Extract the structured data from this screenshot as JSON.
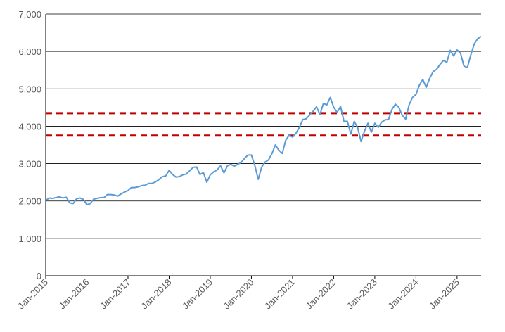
{
  "chart_data": {
    "type": "line",
    "title": "",
    "xlabel": "",
    "ylabel": "",
    "ylim": [
      0,
      7000
    ],
    "yticks": [
      0,
      1000,
      2000,
      3000,
      4000,
      5000,
      6000,
      7000
    ],
    "ytick_labels": [
      "0",
      "1,000",
      "2,000",
      "3,000",
      "4,000",
      "5,000",
      "6,000",
      "7,000"
    ],
    "xlim": [
      "2015-01",
      "2025-08"
    ],
    "xtick_labels": [
      "Jan-2015",
      "Jan-2016",
      "Jan-2017",
      "Jan-2018",
      "Jan-2019",
      "Jan-2020",
      "Jan-2021",
      "Jan-2022",
      "Jan-2023",
      "Jan-2024",
      "Jan-2025"
    ],
    "xtick_values": [
      "2015-01",
      "2016-01",
      "2017-01",
      "2018-01",
      "2019-01",
      "2020-01",
      "2021-01",
      "2022-01",
      "2023-01",
      "2024-01",
      "2025-01"
    ],
    "grid": "horizontal",
    "legend": "none",
    "series": [
      {
        "color": "#5b9bd5",
        "x": [
          "2015-01",
          "2015-02",
          "2015-03",
          "2015-04",
          "2015-05",
          "2015-06",
          "2015-07",
          "2015-08",
          "2015-09",
          "2015-10",
          "2015-11",
          "2015-12",
          "2016-01",
          "2016-02",
          "2016-03",
          "2016-04",
          "2016-05",
          "2016-06",
          "2016-07",
          "2016-08",
          "2016-09",
          "2016-10",
          "2016-11",
          "2016-12",
          "2017-01",
          "2017-02",
          "2017-03",
          "2017-04",
          "2017-05",
          "2017-06",
          "2017-07",
          "2017-08",
          "2017-09",
          "2017-10",
          "2017-11",
          "2017-12",
          "2018-01",
          "2018-02",
          "2018-03",
          "2018-04",
          "2018-05",
          "2018-06",
          "2018-07",
          "2018-08",
          "2018-09",
          "2018-10",
          "2018-11",
          "2018-12",
          "2019-01",
          "2019-02",
          "2019-03",
          "2019-04",
          "2019-05",
          "2019-06",
          "2019-07",
          "2019-08",
          "2019-09",
          "2019-10",
          "2019-11",
          "2019-12",
          "2020-01",
          "2020-02",
          "2020-03",
          "2020-04",
          "2020-05",
          "2020-06",
          "2020-07",
          "2020-08",
          "2020-09",
          "2020-10",
          "2020-11",
          "2020-12",
          "2021-01",
          "2021-02",
          "2021-03",
          "2021-04",
          "2021-05",
          "2021-06",
          "2021-07",
          "2021-08",
          "2021-09",
          "2021-10",
          "2021-11",
          "2021-12",
          "2022-01",
          "2022-02",
          "2022-03",
          "2022-04",
          "2022-05",
          "2022-06",
          "2022-07",
          "2022-08",
          "2022-09",
          "2022-10",
          "2022-11",
          "2022-12",
          "2023-01",
          "2023-02",
          "2023-03",
          "2023-04",
          "2023-05",
          "2023-06",
          "2023-07",
          "2023-08",
          "2023-09",
          "2023-10",
          "2023-11",
          "2023-12",
          "2024-01",
          "2024-02",
          "2024-03",
          "2024-04",
          "2024-05",
          "2024-06",
          "2024-07",
          "2024-08",
          "2024-09",
          "2024-10",
          "2024-11",
          "2024-12",
          "2025-01",
          "2025-02",
          "2025-03",
          "2025-04",
          "2025-05",
          "2025-06",
          "2025-07",
          "2025-08"
        ],
        "values": [
          2010,
          2080,
          2070,
          2090,
          2110,
          2080,
          2100,
          1950,
          1930,
          2060,
          2080,
          2040,
          1900,
          1930,
          2050,
          2070,
          2090,
          2090,
          2170,
          2170,
          2160,
          2130,
          2190,
          2240,
          2280,
          2360,
          2360,
          2380,
          2410,
          2420,
          2470,
          2470,
          2510,
          2570,
          2650,
          2670,
          2820,
          2710,
          2640,
          2650,
          2700,
          2720,
          2810,
          2900,
          2910,
          2710,
          2760,
          2500,
          2700,
          2780,
          2830,
          2940,
          2750,
          2940,
          2980,
          2930,
          2980,
          3030,
          3140,
          3230,
          3230,
          2950,
          2580,
          2910,
          3040,
          3100,
          3270,
          3500,
          3360,
          3270,
          3620,
          3760,
          3710,
          3810,
          3970,
          4180,
          4200,
          4300,
          4400,
          4520,
          4310,
          4610,
          4570,
          4770,
          4510,
          4370,
          4530,
          4130,
          4130,
          3790,
          4130,
          3960,
          3590,
          3870,
          4080,
          3840,
          4080,
          3970,
          4110,
          4170,
          4180,
          4450,
          4590,
          4510,
          4290,
          4190,
          4570,
          4770,
          4850,
          5100,
          5250,
          5040,
          5280,
          5460,
          5520,
          5650,
          5760,
          5710,
          6030,
          5880,
          6040,
          5950,
          5610,
          5570,
          5910,
          6200,
          6340,
          6400
        ]
      }
    ],
    "reference_lines": [
      {
        "y": 4350,
        "color": "#c00000",
        "style": "dashed"
      },
      {
        "y": 3750,
        "color": "#c00000",
        "style": "dashed"
      }
    ]
  }
}
